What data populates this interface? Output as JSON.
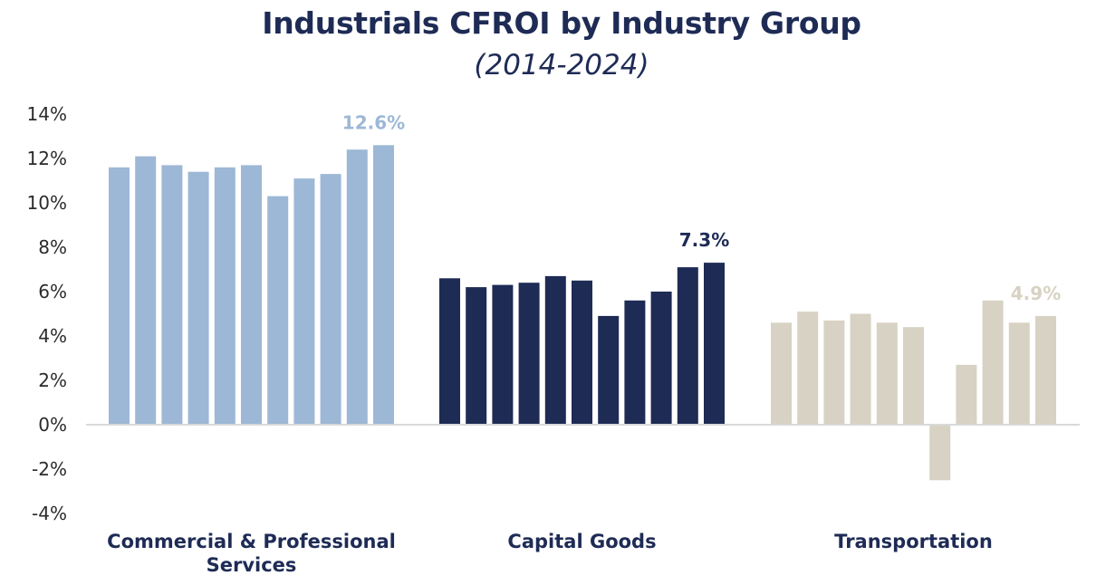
{
  "chart_data": {
    "type": "bar",
    "title": "Industrials CFROI by Industry Group",
    "subtitle": "(2014-2024)",
    "xlabel": "",
    "ylabel": "",
    "ylim": [
      -4,
      14
    ],
    "ytick_values": [
      14,
      12,
      10,
      8,
      6,
      4,
      2,
      0,
      -2,
      -4
    ],
    "yticks": [
      "14%",
      "12%",
      "10%",
      "8%",
      "6%",
      "4%",
      "2%",
      "0%",
      "-2%",
      "-4%"
    ],
    "grid": false,
    "groups": [
      {
        "name": "Commercial  & Professional Services",
        "label_lines": [
          "Commercial  & Professional",
          "Services"
        ],
        "color": "#9db8d6",
        "values": [
          11.6,
          12.1,
          11.7,
          11.4,
          11.6,
          11.7,
          10.3,
          11.1,
          11.3,
          12.4,
          12.6
        ],
        "end_label": "12.6%"
      },
      {
        "name": "Capital Goods",
        "label_lines": [
          "Capital Goods"
        ],
        "color": "#1e2b55",
        "values": [
          6.6,
          6.2,
          6.3,
          6.4,
          6.7,
          6.5,
          4.9,
          5.6,
          6.0,
          7.1,
          7.3
        ],
        "end_label": "7.3%"
      },
      {
        "name": "Transportation",
        "label_lines": [
          "Transportation"
        ],
        "color": "#d7d2c3",
        "values": [
          4.6,
          5.1,
          4.7,
          5.0,
          4.6,
          4.4,
          -2.5,
          2.7,
          5.6,
          4.6,
          4.9
        ],
        "end_label": "4.9%"
      }
    ],
    "axis_color": "#d9d9d9"
  }
}
